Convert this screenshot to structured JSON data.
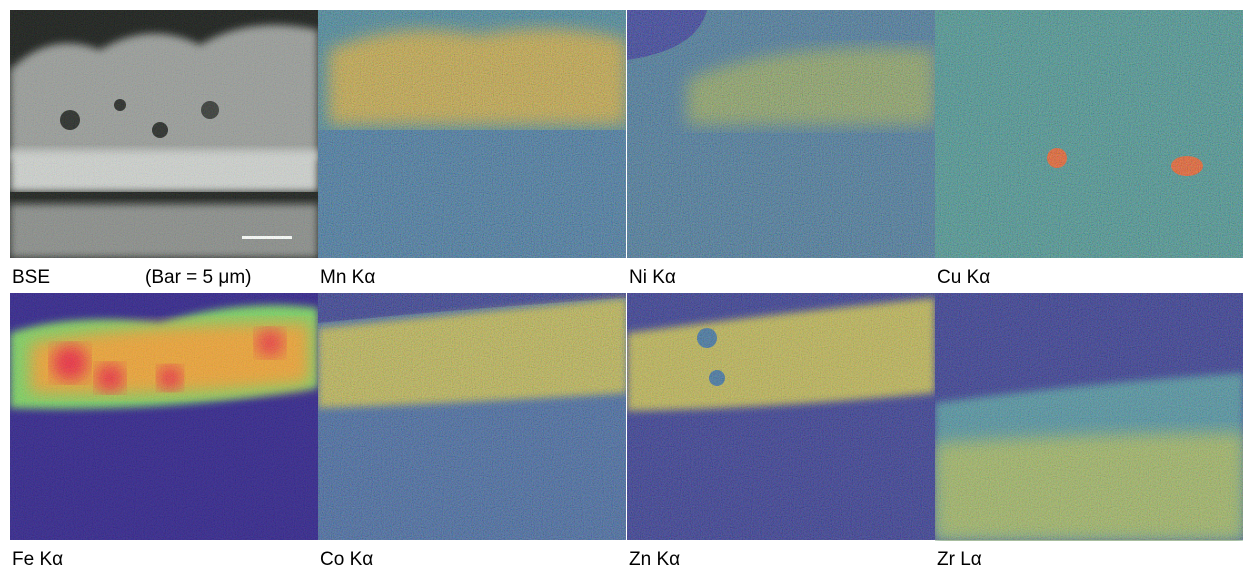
{
  "panels": [
    {
      "label": "BSE",
      "caption": "(Bar = 5 μm)"
    },
    {
      "label": "Mn Kα"
    },
    {
      "label": "Ni Kα"
    },
    {
      "label": "Cu Kα"
    },
    {
      "label": "Fe Kα"
    },
    {
      "label": "Co Kα"
    },
    {
      "label": "Zn Kα"
    },
    {
      "label": "Zr Lα"
    }
  ]
}
